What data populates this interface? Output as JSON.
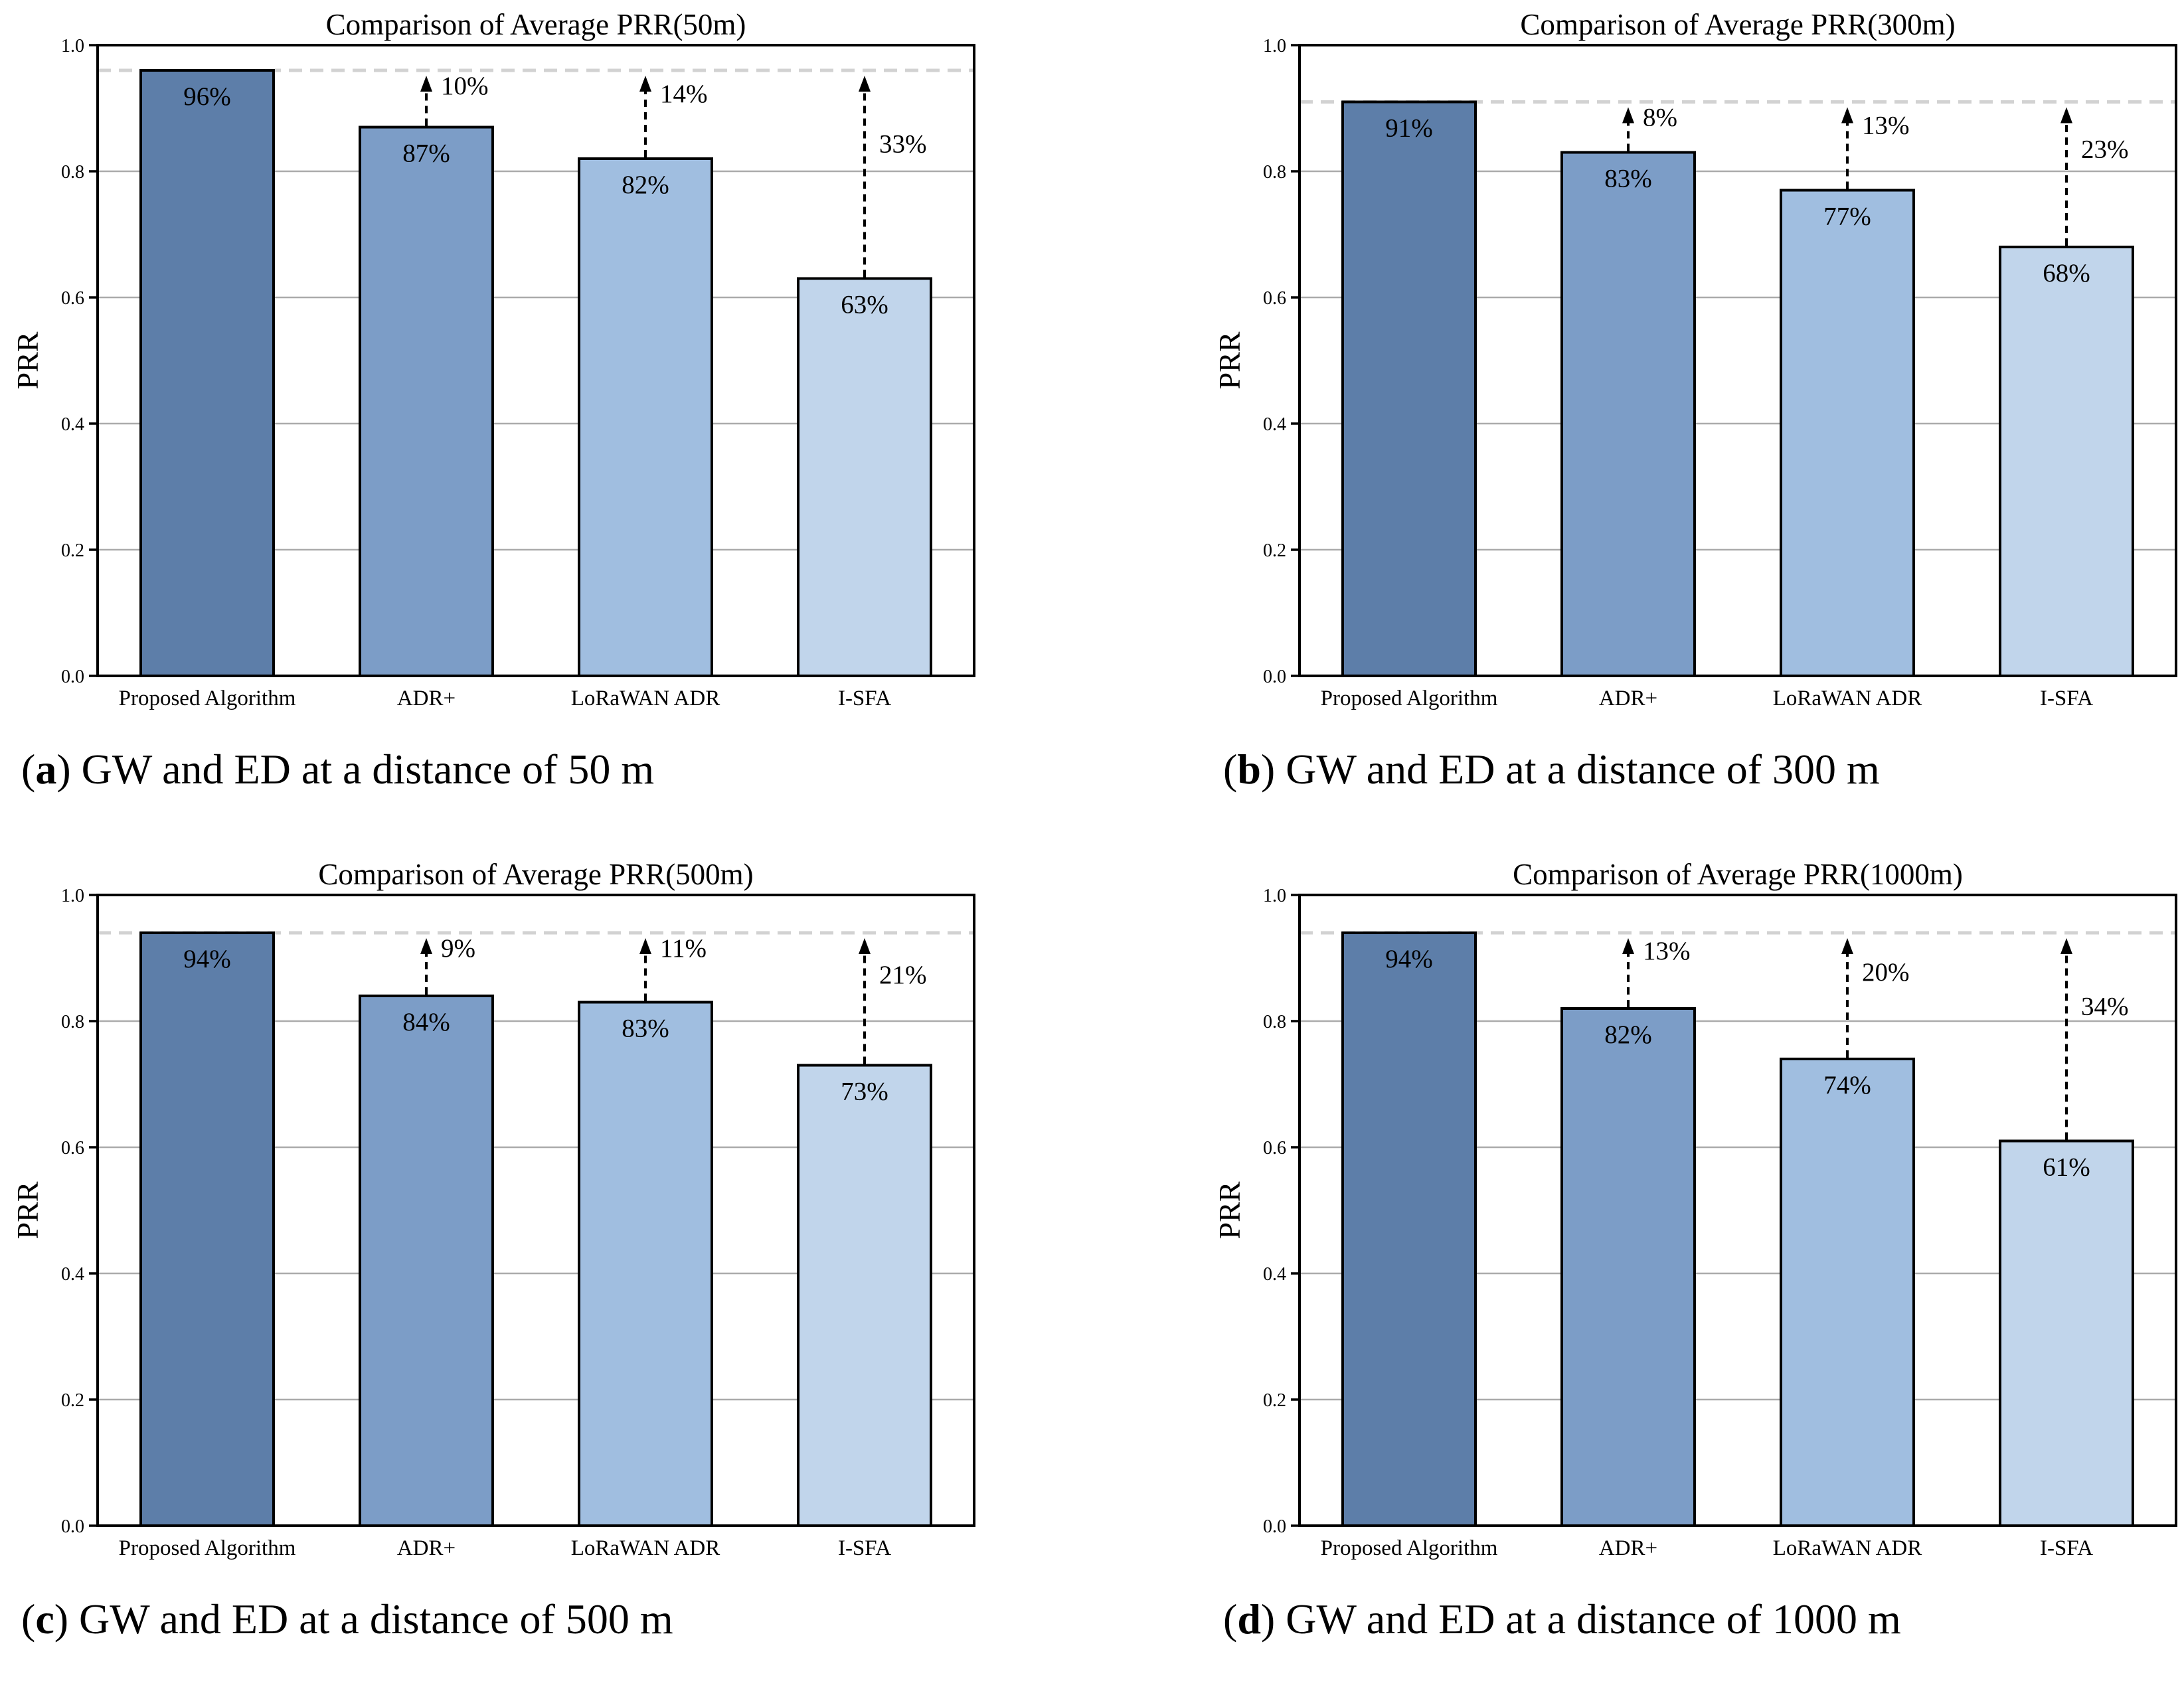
{
  "style": {
    "background": "#ffffff",
    "bar_colors": [
      "#5D7EA9",
      "#7C9DC7",
      "#A0BEE0",
      "#C1D5EB"
    ],
    "bar_edge_color": "#000000",
    "grid_color": "#ABABAB",
    "reference_line_color": "#D2D2D2",
    "arrow_color": "#000000",
    "text_color": "#000000"
  },
  "chart_data": [
    {
      "type": "bar",
      "title": "Comparison of Average PRR(50m)",
      "ylabel": "PRR",
      "ylim": [
        0.0,
        1.0
      ],
      "yticks": [
        "0.0",
        "0.2",
        "0.4",
        "0.6",
        "0.8",
        "1.0"
      ],
      "grid": true,
      "legend": "none",
      "categories": [
        "Proposed Algorithm",
        "ADR+",
        "LoRaWAN ADR",
        "I-SFA"
      ],
      "values": [
        0.96,
        0.87,
        0.82,
        0.63
      ],
      "bar_labels": [
        "96%",
        "87%",
        "82%",
        "63%"
      ],
      "improvement_labels": [
        null,
        "10%",
        "14%",
        "33%"
      ],
      "reference_line": 0.96,
      "caption": {
        "open": "(",
        "letter": "a",
        "close": ")",
        "text": " GW and ED at a distance of 50 m"
      }
    },
    {
      "type": "bar",
      "title": "Comparison of Average PRR(300m)",
      "ylabel": "PRR",
      "ylim": [
        0.0,
        1.0
      ],
      "yticks": [
        "0.0",
        "0.2",
        "0.4",
        "0.6",
        "0.8",
        "1.0"
      ],
      "grid": true,
      "legend": "none",
      "categories": [
        "Proposed Algorithm",
        "ADR+",
        "LoRaWAN ADR",
        "I-SFA"
      ],
      "values": [
        0.91,
        0.83,
        0.77,
        0.68
      ],
      "bar_labels": [
        "91%",
        "83%",
        "77%",
        "68%"
      ],
      "improvement_labels": [
        null,
        "8%",
        "13%",
        "23%"
      ],
      "reference_line": 0.91,
      "caption": {
        "open": "(",
        "letter": "b",
        "close": ")",
        "text": " GW and ED at a distance of 300 m"
      }
    },
    {
      "type": "bar",
      "title": "Comparison of Average PRR(500m)",
      "ylabel": "PRR",
      "ylim": [
        0.0,
        1.0
      ],
      "yticks": [
        "0.0",
        "0.2",
        "0.4",
        "0.6",
        "0.8",
        "1.0"
      ],
      "grid": true,
      "legend": "none",
      "categories": [
        "Proposed Algorithm",
        "ADR+",
        "LoRaWAN ADR",
        "I-SFA"
      ],
      "values": [
        0.94,
        0.84,
        0.83,
        0.73
      ],
      "bar_labels": [
        "94%",
        "84%",
        "83%",
        "73%"
      ],
      "improvement_labels": [
        null,
        "9%",
        "11%",
        "21%"
      ],
      "reference_line": 0.94,
      "caption": {
        "open": "(",
        "letter": "c",
        "close": ")",
        "text": " GW and ED at a distance of 500 m"
      }
    },
    {
      "type": "bar",
      "title": "Comparison of Average PRR(1000m)",
      "ylabel": "PRR",
      "ylim": [
        0.0,
        1.0
      ],
      "yticks": [
        "0.0",
        "0.2",
        "0.4",
        "0.6",
        "0.8",
        "1.0"
      ],
      "grid": true,
      "legend": "none",
      "categories": [
        "Proposed Algorithm",
        "ADR+",
        "LoRaWAN ADR",
        "I-SFA"
      ],
      "values": [
        0.94,
        0.82,
        0.74,
        0.61
      ],
      "bar_labels": [
        "94%",
        "82%",
        "74%",
        "61%"
      ],
      "improvement_labels": [
        null,
        "13%",
        "20%",
        "34%"
      ],
      "reference_line": 0.94,
      "caption": {
        "open": "(",
        "letter": "d",
        "close": ")",
        "text": " GW and ED at a distance of 1000 m"
      }
    }
  ]
}
